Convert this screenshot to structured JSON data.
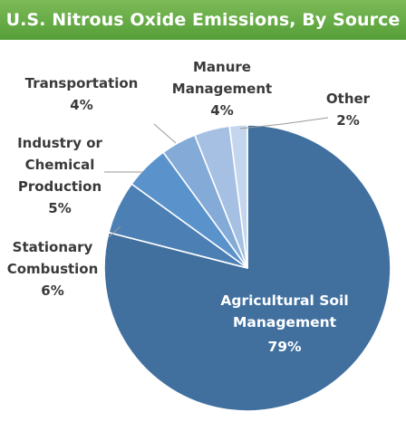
{
  "title": "U.S. Nitrous Oxide Emissions, By Source",
  "colors": {
    "title_bar": "#6aae48",
    "title_text": "#ffffff",
    "label_text": "#3a3a3a"
  },
  "chart_data": {
    "type": "pie",
    "title": "U.S. Nitrous Oxide Emissions, By Source",
    "start": "12 o'clock",
    "direction": "clockwise",
    "slices": [
      {
        "label_lines": [
          "Agricultural Soil",
          "Management"
        ],
        "label": "Agricultural Soil Management",
        "value": 79,
        "display": "79%",
        "color": "#41709f"
      },
      {
        "label_lines": [
          "Stationary",
          "Combustion"
        ],
        "label": "Stationary Combustion",
        "value": 6,
        "display": "6%",
        "color": "#4c7fb4"
      },
      {
        "label_lines": [
          "Industry or",
          "Chemical",
          "Production"
        ],
        "label": "Industry or Chemical Production",
        "value": 5,
        "display": "5%",
        "color": "#5a93cc"
      },
      {
        "label_lines": [
          "Transportation"
        ],
        "label": "Transportation",
        "value": 4,
        "display": "4%",
        "color": "#84abd8"
      },
      {
        "label_lines": [
          "Manure",
          "Management"
        ],
        "label": "Manure Management",
        "value": 4,
        "display": "4%",
        "color": "#a5c0e2"
      },
      {
        "label_lines": [
          "Other"
        ],
        "label": "Other",
        "value": 2,
        "display": "2%",
        "color": "#c4d6ed"
      }
    ]
  }
}
